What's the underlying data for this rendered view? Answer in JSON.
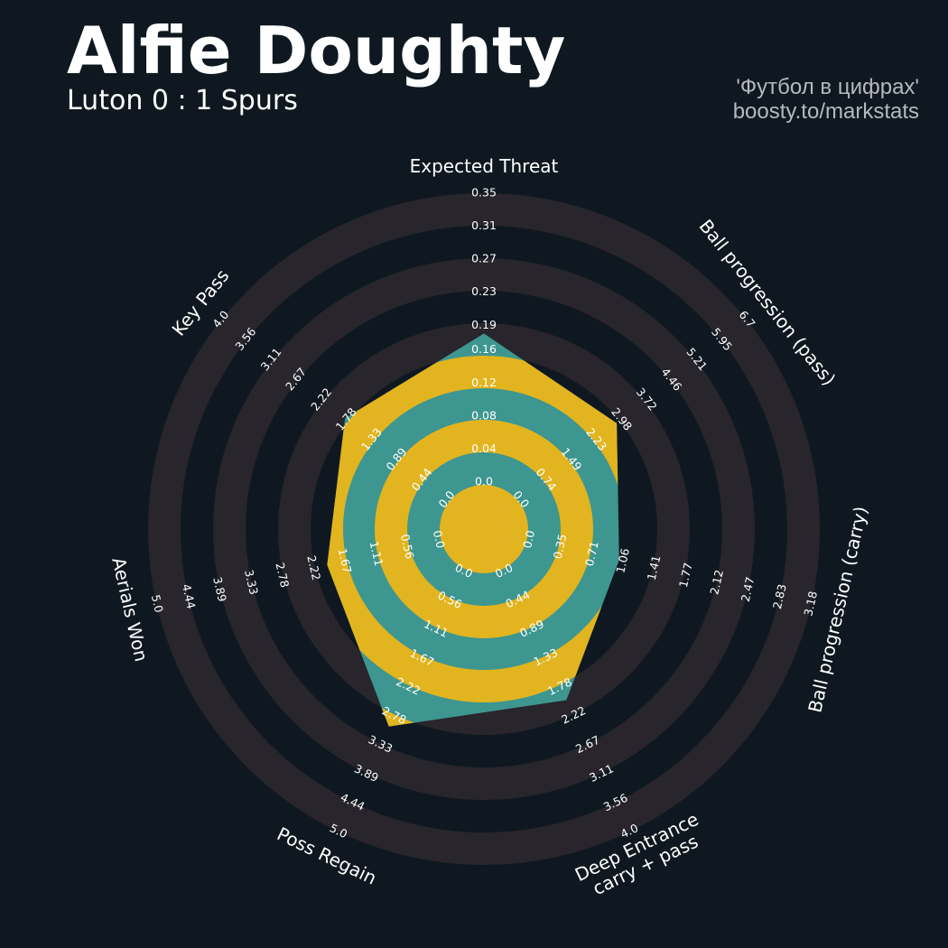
{
  "chart_data": {
    "type": "radar",
    "title": "Alfie Doughty",
    "subtitle": "Luton 0 : 1 Spurs",
    "annotations": [
      "'Футбол в цифрах'",
      "boosty.to/markstats"
    ],
    "axes": [
      {
        "label": "Expected Threat",
        "ylim": [
          0,
          0.35
        ],
        "yticks": [
          {
            "value": 0,
            "label": "0.0"
          },
          0.04,
          0.08,
          0.12,
          0.16,
          0.19,
          0.23,
          0.27,
          0.31,
          0.35
        ]
      },
      {
        "label": "Ball progression (pass)",
        "ylim": [
          0,
          6.7
        ],
        "yticks": [
          {
            "value": 0,
            "label": "0.0"
          },
          0.74,
          1.49,
          2.23,
          2.98,
          3.72,
          4.46,
          5.21,
          5.95,
          6.7
        ]
      },
      {
        "label": "Ball progression (carry)",
        "ylim": [
          0,
          3.18
        ],
        "yticks": [
          {
            "value": 0,
            "label": "0.0"
          },
          0.35,
          0.71,
          1.06,
          1.41,
          1.77,
          2.12,
          2.47,
          2.83,
          3.18
        ]
      },
      {
        "label": "Deep Entrance\ncarry + pass",
        "ylim": [
          0,
          4
        ],
        "yticks": [
          {
            "value": 0,
            "label": "0.0"
          },
          0.44,
          0.89,
          1.33,
          1.78,
          2.22,
          2.67,
          3.11,
          3.56,
          {
            "value": 4,
            "label": "4.0"
          }
        ]
      },
      {
        "label": "Poss Regain",
        "ylim": [
          0,
          5
        ],
        "yticks": [
          {
            "value": 0,
            "label": "0.0"
          },
          0.56,
          1.11,
          1.67,
          2.22,
          2.78,
          3.33,
          3.89,
          4.44,
          {
            "value": 5,
            "label": "5.0"
          }
        ]
      },
      {
        "label": "Aerials Won",
        "ylim": [
          0,
          5
        ],
        "yticks": [
          {
            "value": 0,
            "label": "0.0"
          },
          0.56,
          1.11,
          1.67,
          2.22,
          2.78,
          3.33,
          3.89,
          4.44,
          {
            "value": 5,
            "label": "5.0"
          }
        ]
      },
      {
        "label": "Key Pass",
        "ylim": [
          0,
          4
        ],
        "yticks": [
          {
            "value": 0,
            "label": "0.0"
          },
          0.44,
          0.89,
          1.33,
          1.78,
          2.22,
          2.67,
          3.11,
          3.56,
          {
            "value": 4,
            "label": "4.0"
          }
        ]
      }
    ],
    "values": [
      0.18,
      2.85,
      1.01,
      1.98,
      2.98,
      1.97,
      1.81
    ],
    "color": "#3d9690",
    "highlight_color": "#e2b41f",
    "ring_color": "#28252c"
  }
}
